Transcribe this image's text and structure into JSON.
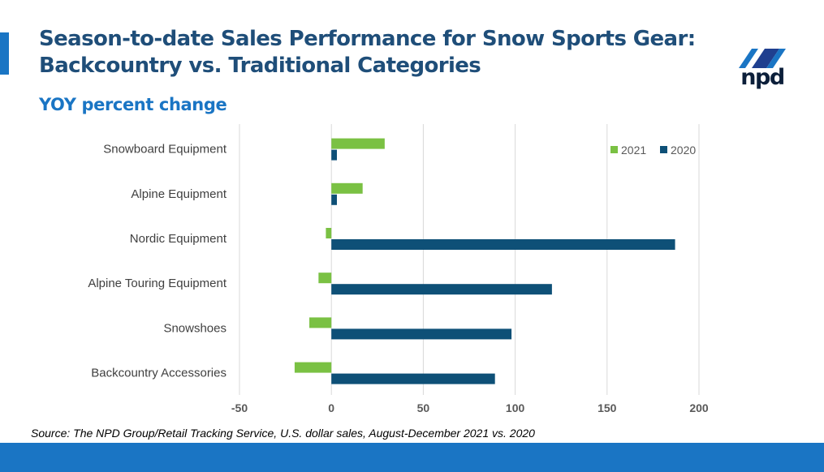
{
  "slide": {
    "title": "Season-to-date Sales Performance for Snow Sports Gear: Backcountry vs. Traditional Categories",
    "subtitle": "YOY percent change",
    "source": "Source: The NPD Group/Retail Tracking Service, U.S. dollar sales, August-December 2021 vs. 2020",
    "logo_text": "npd"
  },
  "colors": {
    "title": "#1f4e79",
    "accent": "#1a75c4",
    "series_2021": "#7ac143",
    "series_2020": "#0e5077"
  },
  "chart_data": {
    "type": "bar",
    "orientation": "horizontal",
    "title": "",
    "xlabel": "",
    "ylabel": "",
    "categories": [
      "Snowboard Equipment",
      "Alpine Equipment",
      "Nordic Equipment",
      "Alpine Touring Equipment",
      "Snowshoes",
      "Backcountry Accessories"
    ],
    "series": [
      {
        "name": "2021",
        "color": "#7ac143",
        "values": [
          29,
          17,
          -3,
          -7,
          -12,
          -20
        ]
      },
      {
        "name": "2020",
        "color": "#0e5077",
        "values": [
          3,
          3,
          187,
          120,
          98,
          89
        ]
      }
    ],
    "xlim": [
      -50,
      200
    ],
    "xticks": [
      "-50",
      "0",
      "50",
      "100",
      "150",
      "200"
    ],
    "grid": true,
    "legend": "top-right"
  }
}
